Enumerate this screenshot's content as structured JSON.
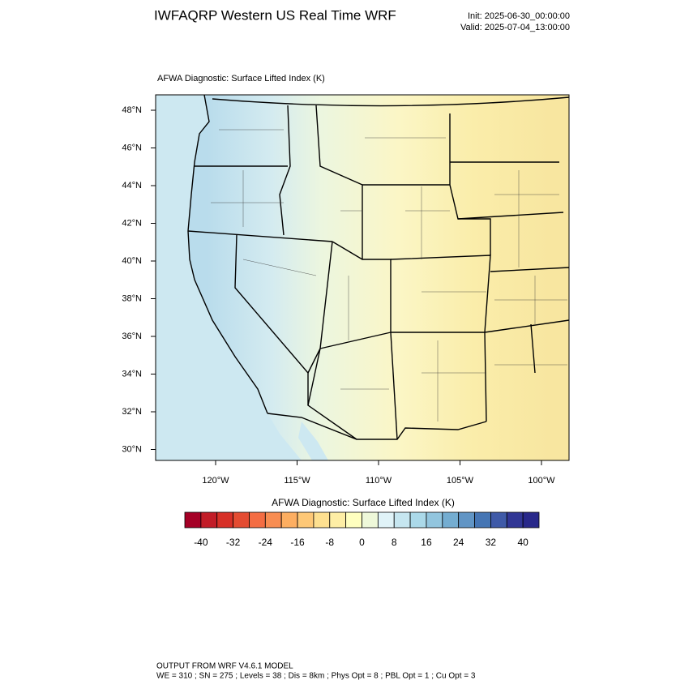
{
  "header": {
    "title": "IWFAQRP Western US Real Time WRF",
    "init": "Init: 2025-06-30_00:00:00",
    "valid": "Valid: 2025-07-04_13:00:00"
  },
  "map": {
    "title": "AFWA Diagnostic: Surface Lifted Index   (K)",
    "lat_labels": [
      "48°N",
      "46°N",
      "44°N",
      "42°N",
      "40°N",
      "38°N",
      "36°N",
      "34°N",
      "32°N",
      "30°N"
    ],
    "lon_labels": [
      "120°W",
      "115°W",
      "110°W",
      "105°W",
      "100°W"
    ]
  },
  "colorbar": {
    "title": "AFWA Diagnostic: Surface Lifted Index  (K)",
    "colors": [
      "#a50026",
      "#c21c27",
      "#d73027",
      "#e44c32",
      "#f46d43",
      "#f88d52",
      "#fdae61",
      "#fec877",
      "#fee090",
      "#feeea5",
      "#ffffbf",
      "#eef8d9",
      "#e0f3f8",
      "#c6e6f0",
      "#abd9e9",
      "#92c5de",
      "#74add1",
      "#6195c5",
      "#4575b4",
      "#3f5aa8",
      "#313695",
      "#28288a"
    ],
    "labels": [
      -40,
      -32,
      -24,
      -16,
      -8,
      0,
      8,
      16,
      24,
      32,
      40
    ]
  },
  "footer": {
    "line1": "OUTPUT FROM WRF V4.6.1 MODEL",
    "line2": "WE = 310 ; SN = 275 ; Levels = 38 ; Dis = 8km ; Phys Opt = 8 ; PBL Opt = 1 ; Cu Opt = 3"
  }
}
